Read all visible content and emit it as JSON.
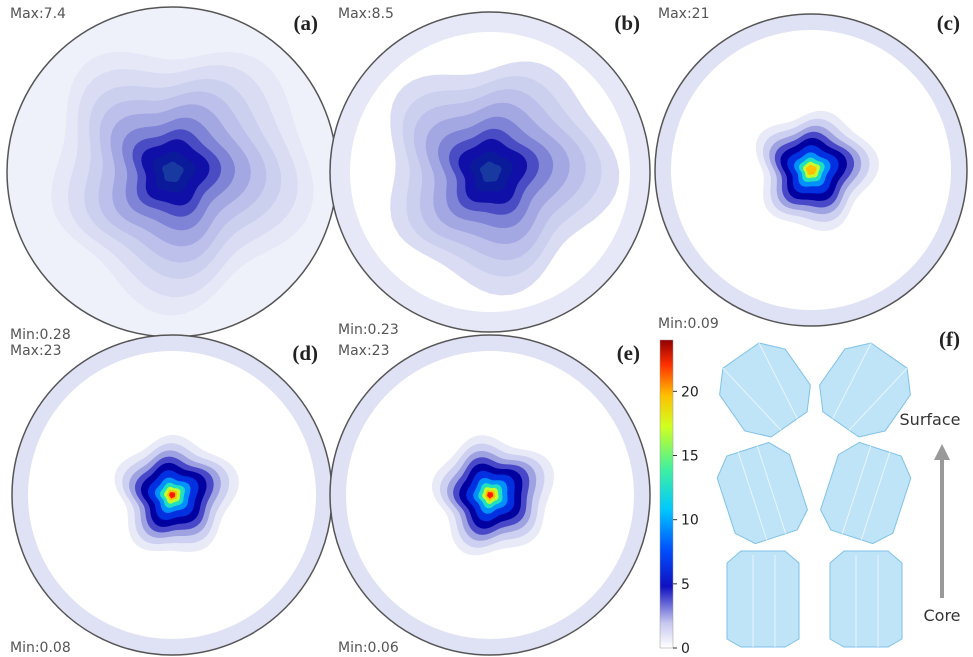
{
  "panels": [
    {
      "label": "(a)",
      "max": "Max:7.4",
      "min": "Min:0.28"
    },
    {
      "label": "(b)",
      "max": "Max:8.5",
      "min": "Min:0.23"
    },
    {
      "label": "(c)",
      "max": "Max:21",
      "min": "Min:0.09"
    },
    {
      "label": "(d)",
      "max": "Max:23",
      "min": "Min:0.08"
    },
    {
      "label": "(e)",
      "max": "Max:23",
      "min": "Min:0.06"
    }
  ],
  "colorbar": {
    "range": [
      0,
      24
    ],
    "ticks": [
      0,
      5,
      10,
      15,
      20
    ]
  },
  "crystal_panel": {
    "label": "(f)",
    "top": "Surface",
    "bottom": "Core"
  }
}
